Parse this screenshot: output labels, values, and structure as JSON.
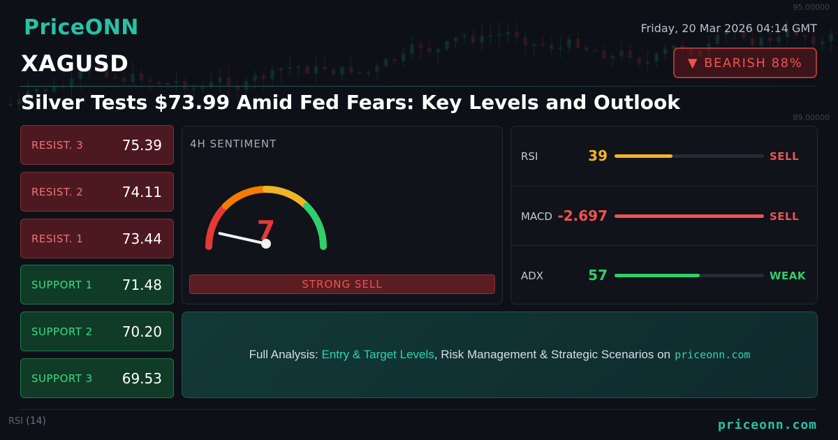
{
  "brand": {
    "logo": "PriceONN",
    "footer_site": "priceonn.com"
  },
  "header": {
    "datetime": "Friday, 20 Mar 2026 04:14 GMT",
    "symbol": "XAGUSD",
    "trend": {
      "icon": "down-triangle-icon",
      "glyph": "▼",
      "label": "BEARISH 88%",
      "color": "#ef5350"
    },
    "headline": "Silver Tests $73.99 Amid Fed Fears: Key Levels and Outlook"
  },
  "levels": [
    {
      "label": "RESIST. 3",
      "value": "75.39",
      "kind": "resistance"
    },
    {
      "label": "RESIST. 2",
      "value": "74.11",
      "kind": "resistance"
    },
    {
      "label": "RESIST. 1",
      "value": "73.44",
      "kind": "resistance"
    },
    {
      "label": "SUPPORT 1",
      "value": "71.48",
      "kind": "support"
    },
    {
      "label": "SUPPORT 2",
      "value": "70.20",
      "kind": "support"
    },
    {
      "label": "SUPPORT 3",
      "value": "69.53",
      "kind": "support"
    }
  ],
  "sentiment": {
    "title": "4H SENTIMENT",
    "score": "7",
    "score_value": 7,
    "scale_max": 100,
    "signal": "STRONG SELL",
    "score_color": "#e53935"
  },
  "indicators": [
    {
      "name": "RSI",
      "value": "39",
      "signal": "SELL",
      "level": 0.39,
      "value_color": "#f0b429",
      "bar_color": "#f0b429",
      "signal_color": "#ef5350"
    },
    {
      "name": "MACD",
      "value": "-2.697",
      "signal": "SELL",
      "level": 1.0,
      "value_color": "#ef5350",
      "bar_color": "#ef5350",
      "signal_color": "#ef5350"
    },
    {
      "name": "ADX",
      "value": "57",
      "signal": "WEAK",
      "level": 0.57,
      "value_color": "#2fcf6a",
      "bar_color": "#2fcf6a",
      "signal_color": "#2fcf6a"
    }
  ],
  "promo": {
    "prefix": "Full Analysis:",
    "highlight": "Entry & Target Levels",
    "middle": ", Risk Management & Strategic Scenarios on",
    "site": "priceonn.com"
  },
  "background": {
    "rsi_label": "RSI",
    "rsi_period": "(14)",
    "price_labels": [
      "95.00000",
      "89.00000"
    ],
    "colors": {
      "up": "#1fa37a",
      "down": "#b83a3a",
      "accent": "#27c2a6"
    }
  }
}
